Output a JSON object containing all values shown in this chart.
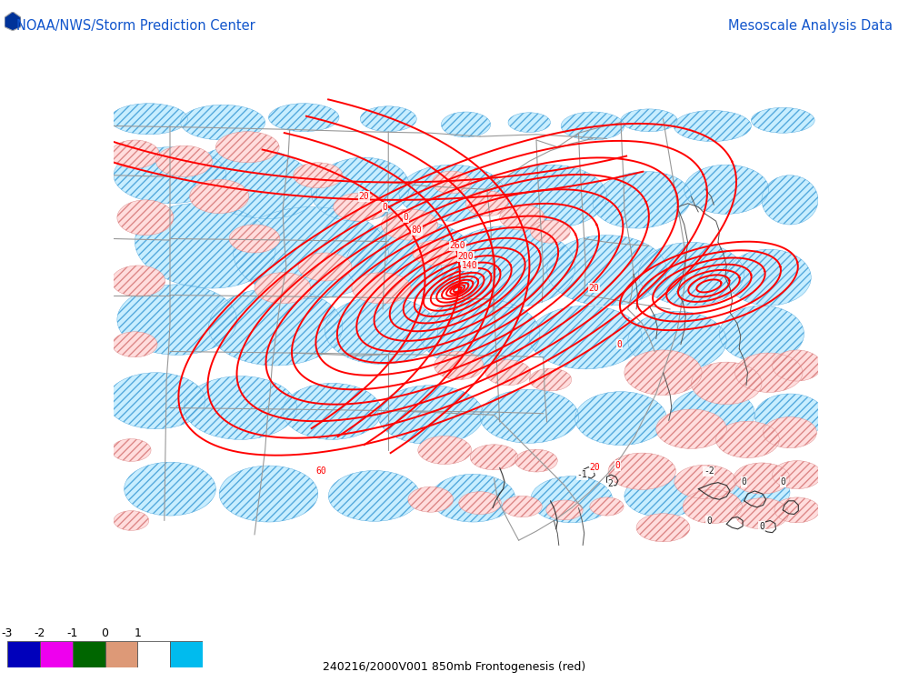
{
  "title_left": "NOAA/NWS/Storm Prediction Center",
  "title_right": "Mesoscale Analysis Data",
  "bottom_label": "240216/2000V001 850mb Frontogenesis (red)",
  "background_color": "#ffffff",
  "legend_values": [
    "-3",
    "-2",
    "-1",
    "0",
    "1"
  ],
  "legend_colors": [
    "#0000bb",
    "#ee00ee",
    "#006600",
    "#dd9977",
    "#ffffff",
    "#00bbee"
  ],
  "fig_width": 10.0,
  "fig_height": 7.5,
  "dpi": 100
}
